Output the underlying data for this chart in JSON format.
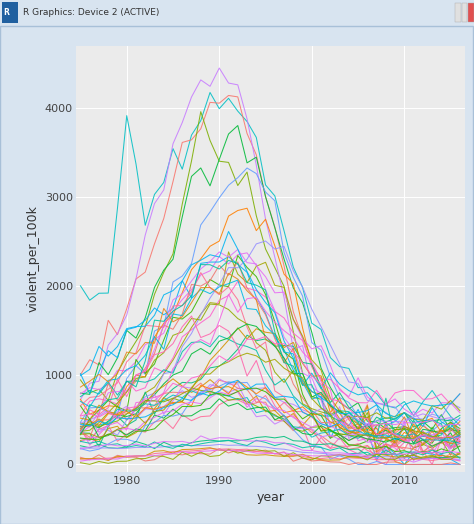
{
  "title_bar_text": "R Graphics: Device 2 (ACTIVE)",
  "xlabel": "year",
  "ylabel": "violent_per_100k",
  "year_start": 1975,
  "year_end": 2016,
  "ylim": [
    -80,
    4700
  ],
  "yticks": [
    0,
    1000,
    2000,
    3000,
    4000
  ],
  "xticks": [
    1980,
    1990,
    2000,
    2010
  ],
  "plot_bg": "#EBEBEB",
  "grid_color": "#FFFFFF",
  "outer_bg": "#D8E4F0",
  "titlebar_bg": "#D6E4F7",
  "window_border": "#A8C0D8",
  "num_series": 51,
  "seed": 99,
  "line_colors": [
    "#00BFC4",
    "#F8766D",
    "#7CAE00",
    "#C77CFF",
    "#00BA38",
    "#619CFF",
    "#FF7F00",
    "#E76BF3",
    "#00B0F6",
    "#A3A500",
    "#FF61CC",
    "#39B600",
    "#00BF7D",
    "#F0766E",
    "#9590FF",
    "#FF6C91",
    "#D39200",
    "#00C1A7",
    "#DB72FB",
    "#93AA00",
    "#00B9E3",
    "#E5861A",
    "#FF65AC",
    "#00BA38",
    "#F564E3",
    "#00C19F",
    "#00B4F0",
    "#B983FF",
    "#FF6A98",
    "#D89000",
    "#F8766D",
    "#00BFC4",
    "#7CAE00",
    "#C77CFF",
    "#00BA38",
    "#619CFF",
    "#FF7F00",
    "#E76BF3",
    "#00B0F6",
    "#A3A500",
    "#FF61CC",
    "#39B600",
    "#00BF7D",
    "#F0766E",
    "#9590FF",
    "#FF6C91",
    "#D39200",
    "#00C1A7",
    "#DB72FB",
    "#93AA00",
    "#E76BF3"
  ]
}
